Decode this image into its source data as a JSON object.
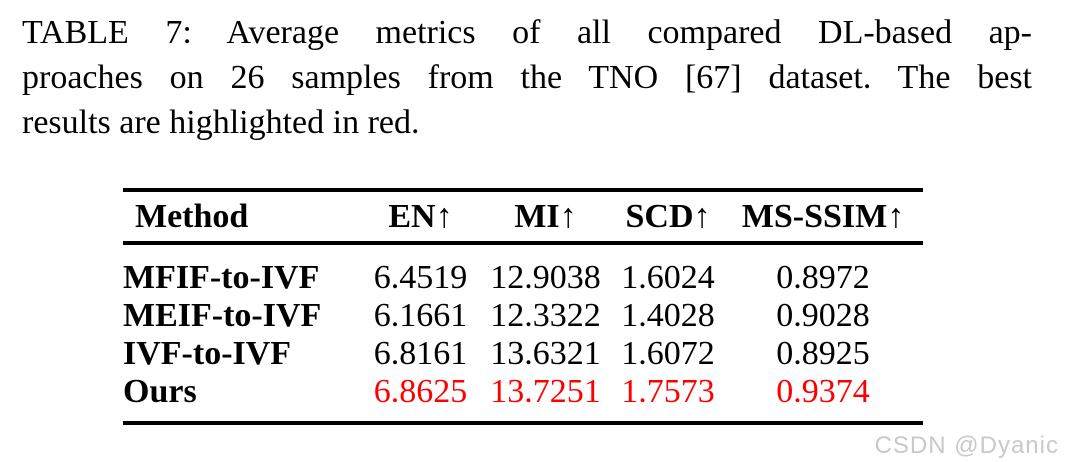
{
  "caption": {
    "lines": [
      "TABLE 7: Average metrics of all compared DL-based ap-",
      "proaches on 26 samples from the TNO [67] dataset. The best",
      "results are highlighted in red."
    ]
  },
  "table": {
    "headers": {
      "method": "Method",
      "en": "EN↑",
      "mi": "MI↑",
      "scd": "SCD↑",
      "msssim": "MS-SSIM↑"
    },
    "rows": [
      {
        "method": "MFIF-to-IVF",
        "values": [
          "6.4519",
          "12.9038",
          "1.6024",
          "0.8972"
        ],
        "highlight": false
      },
      {
        "method": "MEIF-to-IVF",
        "values": [
          "6.1661",
          "12.3322",
          "1.4028",
          "0.9028"
        ],
        "highlight": false
      },
      {
        "method": "IVF-to-IVF",
        "values": [
          "6.8161",
          "13.6321",
          "1.6072",
          "0.8925"
        ],
        "highlight": false
      },
      {
        "method": "Ours",
        "values": [
          "6.8625",
          "13.7251",
          "1.7573",
          "0.9374"
        ],
        "highlight": true
      }
    ],
    "highlight_color": "#ff0000",
    "text_color": "#000000"
  },
  "watermark": {
    "text": "CSDN @Dyanic",
    "color": "#c9c9c9"
  }
}
